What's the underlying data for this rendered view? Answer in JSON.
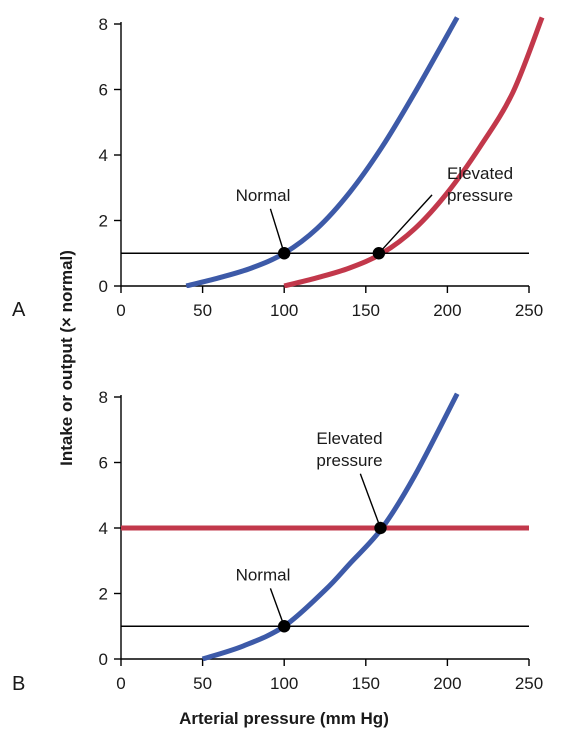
{
  "figure": {
    "ylabel": "Intake or output (× normal)",
    "xlabel": "Arterial pressure (mm Hg)"
  },
  "colors": {
    "blue": "#3d5aa8",
    "red": "#c2384b",
    "black": "#000000"
  },
  "chart_data": [
    {
      "type": "line",
      "panel_label": "A",
      "xlim": [
        0,
        250
      ],
      "ylim": [
        0,
        8
      ],
      "x_ticks": [
        0,
        50,
        100,
        150,
        200,
        250
      ],
      "y_ticks": [
        0,
        2,
        4,
        6,
        8
      ],
      "series": [
        {
          "color": "#3d5aa8",
          "x": [
            40,
            60,
            80,
            100,
            120,
            140,
            160,
            180,
            206
          ],
          "y": [
            0,
            0.25,
            0.55,
            1.0,
            1.75,
            2.85,
            4.25,
            5.9,
            8.2
          ]
        },
        {
          "color": "#c2384b",
          "x": [
            100,
            120,
            140,
            160,
            180,
            200,
            220,
            240,
            258
          ],
          "y": [
            0,
            0.25,
            0.55,
            1.0,
            1.75,
            2.85,
            4.25,
            5.9,
            8.2
          ]
        },
        {
          "color": "#000000",
          "x": [
            0,
            250
          ],
          "y": [
            1,
            1
          ]
        }
      ],
      "points": [
        {
          "x": 100,
          "y": 1
        },
        {
          "x": 158,
          "y": 1
        }
      ],
      "annotations": [
        {
          "text": "Normal",
          "x": 87,
          "y": 2.6,
          "point": {
            "x": 100,
            "y": 1
          }
        },
        {
          "text": "Elevated pressure",
          "lines": [
            "Elevated",
            "pressure"
          ],
          "x": 220,
          "y": 2.6,
          "point": {
            "x": 158,
            "y": 1
          }
        }
      ]
    },
    {
      "type": "line",
      "panel_label": "B",
      "xlim": [
        0,
        250
      ],
      "ylim": [
        0,
        8
      ],
      "x_ticks": [
        0,
        50,
        100,
        150,
        200,
        250
      ],
      "y_ticks": [
        0,
        2,
        4,
        6,
        8
      ],
      "series": [
        {
          "color": "#3d5aa8",
          "x": [
            50,
            75,
            100,
            125,
            140,
            160,
            180,
            206
          ],
          "y": [
            0,
            0.4,
            1.0,
            2.1,
            2.9,
            4.0,
            5.6,
            8.1
          ]
        },
        {
          "color": "#c2384b",
          "x": [
            0,
            250
          ],
          "y": [
            4,
            4
          ]
        },
        {
          "color": "#000000",
          "x": [
            0,
            250
          ],
          "y": [
            1,
            1
          ]
        }
      ],
      "points": [
        {
          "x": 100,
          "y": 1
        },
        {
          "x": 159,
          "y": 4
        }
      ],
      "annotations": [
        {
          "text": "Normal",
          "x": 87,
          "y": 2.4,
          "point": {
            "x": 100,
            "y": 1
          }
        },
        {
          "text": "Elevated pressure",
          "lines": [
            "Elevated",
            "pressure"
          ],
          "x": 140,
          "y": 5.9,
          "point": {
            "x": 159,
            "y": 4
          }
        }
      ]
    }
  ]
}
